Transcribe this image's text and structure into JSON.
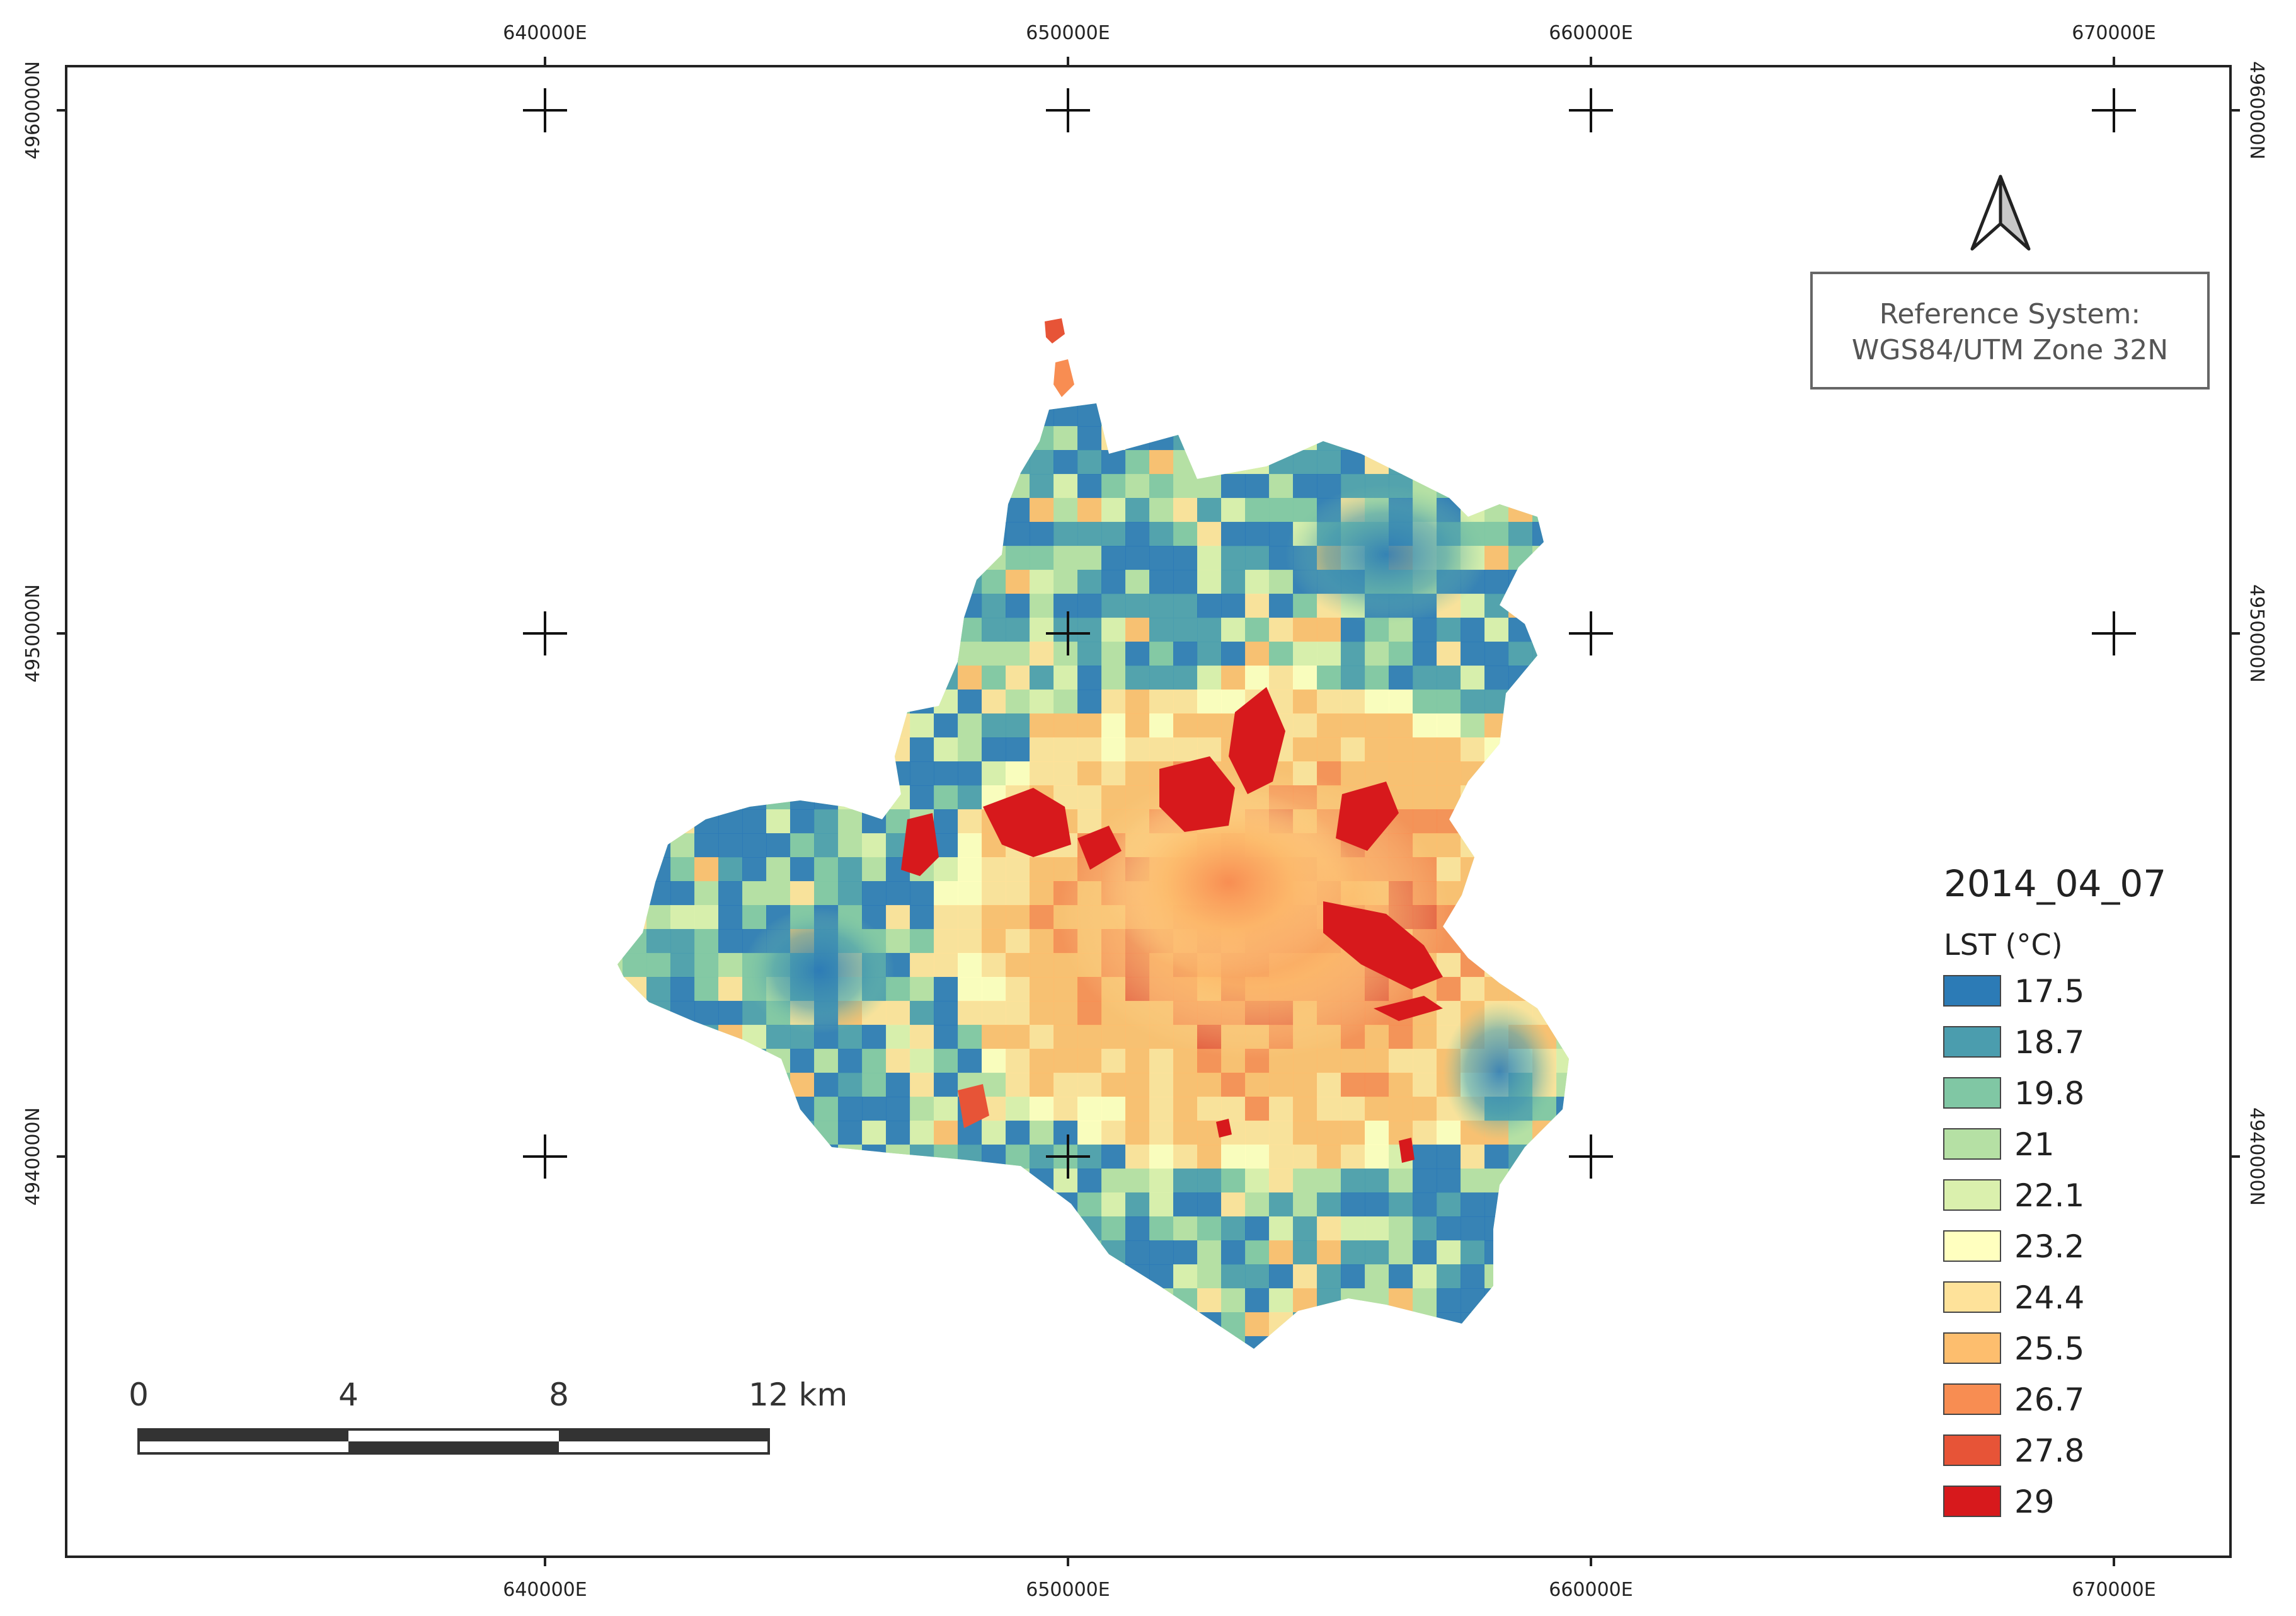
{
  "map": {
    "grid": {
      "x_labels": [
        "640000E",
        "650000E",
        "660000E",
        "670000E"
      ],
      "y_labels": [
        "4960000N",
        "4950000N",
        "4940000N"
      ]
    },
    "reference_system": {
      "line1": "Reference System:",
      "line2": "WGS84/UTM Zone 32N"
    },
    "north_arrow": "north-arrow-icon",
    "scale_bar": {
      "labels": [
        "0",
        "4",
        "8",
        "12 km"
      ]
    },
    "legend": {
      "title": "2014_04_07",
      "subtitle": "LST (°C)",
      "items": [
        {
          "label": "17.5",
          "color": "#2c7bb6"
        },
        {
          "label": "18.7",
          "color": "#4b9dae"
        },
        {
          "label": "19.8",
          "color": "#80c7a4"
        },
        {
          "label": "21",
          "color": "#b5e0a4"
        },
        {
          "label": "22.1",
          "color": "#daf0ad"
        },
        {
          "label": "23.2",
          "color": "#ffffbf"
        },
        {
          "label": "24.4",
          "color": "#fee29a"
        },
        {
          "label": "25.5",
          "color": "#fdbe6e"
        },
        {
          "label": "26.7",
          "color": "#f88d52"
        },
        {
          "label": "27.8",
          "color": "#e75437"
        },
        {
          "label": "29",
          "color": "#d7191c"
        }
      ]
    }
  }
}
